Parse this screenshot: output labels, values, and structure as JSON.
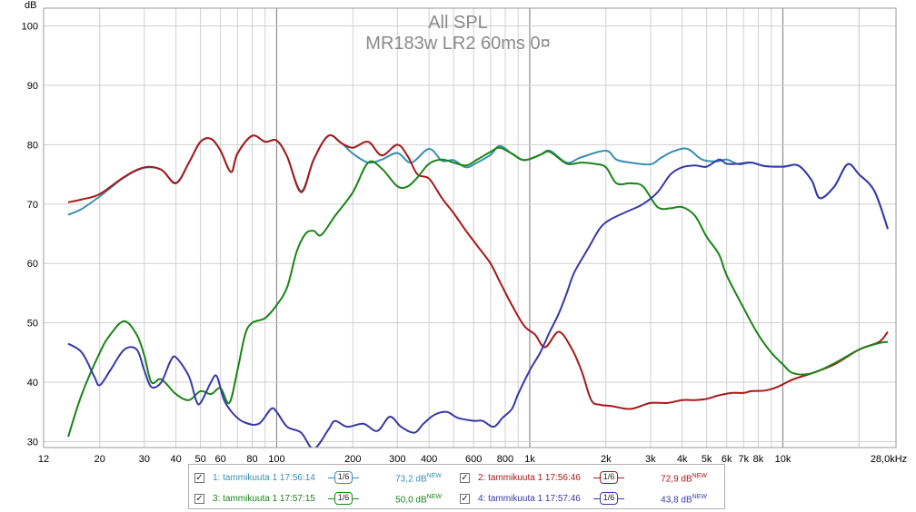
{
  "chart_data": {
    "type": "line",
    "title": "All SPL",
    "subtitle": "MR183w LR2 60ms 0¤",
    "ylabel": "dB",
    "xscale": "log",
    "xlim": [
      12,
      28000
    ],
    "ylim": [
      29,
      103
    ],
    "y_ticks": [
      "30",
      "40",
      "50",
      "60",
      "70",
      "80",
      "90",
      "100"
    ],
    "x_tick_labels": [
      {
        "f": 12,
        "label": "12"
      },
      {
        "f": 20,
        "label": "20"
      },
      {
        "f": 30,
        "label": "30"
      },
      {
        "f": 40,
        "label": "40"
      },
      {
        "f": 50,
        "label": "50"
      },
      {
        "f": 60,
        "label": "60"
      },
      {
        "f": 80,
        "label": "80"
      },
      {
        "f": 100,
        "label": "100"
      },
      {
        "f": 200,
        "label": "200"
      },
      {
        "f": 300,
        "label": "300"
      },
      {
        "f": 400,
        "label": "400"
      },
      {
        "f": 600,
        "label": "600"
      },
      {
        "f": 800,
        "label": "800"
      },
      {
        "f": 1000,
        "label": "1k"
      },
      {
        "f": 2000,
        "label": "2k"
      },
      {
        "f": 3000,
        "label": "3k"
      },
      {
        "f": 4000,
        "label": "4k"
      },
      {
        "f": 5000,
        "label": "5k"
      },
      {
        "f": 6000,
        "label": "6k"
      },
      {
        "f": 7000,
        "label": "7k"
      },
      {
        "f": 8000,
        "label": "8k"
      },
      {
        "f": 10000,
        "label": "10k"
      },
      {
        "f": 28000,
        "label": "28,0kHz"
      }
    ],
    "grid": true,
    "legend_position": "bottom",
    "series": [
      {
        "name": "1: tammikuuta 1 17:56:14",
        "color": "#3a8fb0",
        "points": [
          [
            15,
            68.2
          ],
          [
            17,
            69.2
          ],
          [
            20,
            71.3
          ],
          [
            25,
            74.5
          ],
          [
            30,
            76.1
          ],
          [
            35,
            75.8
          ],
          [
            40,
            73.6
          ],
          [
            45,
            77.0
          ],
          [
            50,
            80.5
          ],
          [
            55,
            81.0
          ],
          [
            60,
            79.0
          ],
          [
            66,
            75.4
          ],
          [
            70,
            78.5
          ],
          [
            80,
            81.5
          ],
          [
            90,
            80.5
          ],
          [
            100,
            80.7
          ],
          [
            110,
            78.0
          ],
          [
            125,
            72.2
          ],
          [
            140,
            77.5
          ],
          [
            160,
            81.5
          ],
          [
            180,
            80.3
          ],
          [
            200,
            78.5
          ],
          [
            230,
            77.0
          ],
          [
            260,
            77.5
          ],
          [
            300,
            78.6
          ],
          [
            340,
            77.0
          ],
          [
            400,
            79.3
          ],
          [
            450,
            77.3
          ],
          [
            500,
            77.4
          ],
          [
            560,
            76.2
          ],
          [
            620,
            77.0
          ],
          [
            700,
            78.3
          ],
          [
            760,
            79.8
          ],
          [
            850,
            78.5
          ],
          [
            950,
            77.4
          ],
          [
            1100,
            78.3
          ],
          [
            1200,
            79.0
          ],
          [
            1400,
            77.0
          ],
          [
            1600,
            77.9
          ],
          [
            2000,
            79.0
          ],
          [
            2200,
            77.5
          ],
          [
            2500,
            77.0
          ],
          [
            3000,
            76.7
          ],
          [
            3300,
            77.8
          ],
          [
            3700,
            78.9
          ],
          [
            4200,
            79.3
          ],
          [
            4800,
            77.5
          ],
          [
            5500,
            77.2
          ],
          [
            6000,
            77.5
          ],
          [
            6700,
            76.7
          ],
          [
            7500,
            77.0
          ],
          [
            8500,
            76.4
          ],
          [
            10000,
            76.3
          ],
          [
            11500,
            76.5
          ],
          [
            13000,
            74.0
          ],
          [
            14000,
            71.0
          ],
          [
            16000,
            73.0
          ],
          [
            18000,
            76.7
          ],
          [
            20000,
            75.0
          ],
          [
            23000,
            72.2
          ],
          [
            26000,
            65.8
          ]
        ]
      },
      {
        "name": "2: tammikuuta 1 17:56:46",
        "color": "#a81818",
        "points": [
          [
            15,
            70.3
          ],
          [
            17,
            70.8
          ],
          [
            20,
            71.7
          ],
          [
            25,
            74.6
          ],
          [
            30,
            76.2
          ],
          [
            35,
            75.8
          ],
          [
            40,
            73.5
          ],
          [
            45,
            77.0
          ],
          [
            50,
            80.5
          ],
          [
            55,
            81.0
          ],
          [
            60,
            79.0
          ],
          [
            66,
            75.4
          ],
          [
            70,
            78.5
          ],
          [
            80,
            81.5
          ],
          [
            90,
            80.5
          ],
          [
            100,
            80.7
          ],
          [
            110,
            78.0
          ],
          [
            125,
            72.0
          ],
          [
            140,
            77.5
          ],
          [
            160,
            81.5
          ],
          [
            180,
            80.3
          ],
          [
            200,
            79.5
          ],
          [
            230,
            80.5
          ],
          [
            260,
            78.2
          ],
          [
            300,
            80.0
          ],
          [
            330,
            78.0
          ],
          [
            360,
            75.0
          ],
          [
            400,
            74.3
          ],
          [
            450,
            71.0
          ],
          [
            500,
            68.5
          ],
          [
            560,
            65.5
          ],
          [
            620,
            63.0
          ],
          [
            700,
            60.0
          ],
          [
            760,
            57.0
          ],
          [
            850,
            53.0
          ],
          [
            950,
            49.5
          ],
          [
            1050,
            48.0
          ],
          [
            1150,
            45.9
          ],
          [
            1300,
            48.5
          ],
          [
            1450,
            46.0
          ],
          [
            1600,
            42.0
          ],
          [
            1750,
            37.0
          ],
          [
            1900,
            36.2
          ],
          [
            2100,
            36.0
          ],
          [
            2500,
            35.5
          ],
          [
            3000,
            36.5
          ],
          [
            3500,
            36.5
          ],
          [
            4000,
            37.0
          ],
          [
            4500,
            37.0
          ],
          [
            5000,
            37.2
          ],
          [
            5600,
            37.8
          ],
          [
            6300,
            38.2
          ],
          [
            7000,
            38.2
          ],
          [
            7500,
            38.5
          ],
          [
            8500,
            38.6
          ],
          [
            9500,
            39.2
          ],
          [
            11000,
            40.5
          ],
          [
            13000,
            41.5
          ],
          [
            16000,
            43.0
          ],
          [
            20000,
            45.5
          ],
          [
            24000,
            46.8
          ],
          [
            26000,
            48.5
          ]
        ]
      },
      {
        "name": "3: tammikuuta 1 17:57:15",
        "color": "#1a8418",
        "points": [
          [
            15,
            30.8
          ],
          [
            17,
            38.0
          ],
          [
            20,
            45.0
          ],
          [
            22,
            48.0
          ],
          [
            25,
            50.3
          ],
          [
            28,
            48.0
          ],
          [
            30,
            44.5
          ],
          [
            32,
            40.0
          ],
          [
            35,
            40.5
          ],
          [
            40,
            38.0
          ],
          [
            45,
            37.0
          ],
          [
            50,
            38.5
          ],
          [
            55,
            38.0
          ],
          [
            60,
            39.0
          ],
          [
            65,
            36.5
          ],
          [
            70,
            42.0
          ],
          [
            75,
            48.0
          ],
          [
            80,
            50.0
          ],
          [
            90,
            50.8
          ],
          [
            100,
            53.0
          ],
          [
            110,
            56.0
          ],
          [
            120,
            62.0
          ],
          [
            130,
            65.0
          ],
          [
            140,
            65.5
          ],
          [
            150,
            64.8
          ],
          [
            170,
            68.0
          ],
          [
            200,
            72.0
          ],
          [
            230,
            77.0
          ],
          [
            260,
            76.0
          ],
          [
            300,
            73.0
          ],
          [
            330,
            73.0
          ],
          [
            360,
            74.5
          ],
          [
            400,
            76.8
          ],
          [
            450,
            77.5
          ],
          [
            500,
            77.0
          ],
          [
            560,
            76.5
          ],
          [
            620,
            77.5
          ],
          [
            700,
            78.8
          ],
          [
            760,
            79.5
          ],
          [
            850,
            78.5
          ],
          [
            950,
            77.4
          ],
          [
            1100,
            78.3
          ],
          [
            1200,
            78.8
          ],
          [
            1400,
            76.8
          ],
          [
            1600,
            77.0
          ],
          [
            1800,
            76.8
          ],
          [
            2000,
            76.2
          ],
          [
            2200,
            73.5
          ],
          [
            2500,
            73.5
          ],
          [
            2800,
            73.0
          ],
          [
            3200,
            69.5
          ],
          [
            3600,
            69.3
          ],
          [
            4000,
            69.5
          ],
          [
            4500,
            68.0
          ],
          [
            5000,
            64.5
          ],
          [
            5600,
            61.5
          ],
          [
            6000,
            58.0
          ],
          [
            7000,
            52.5
          ],
          [
            8000,
            48.0
          ],
          [
            9000,
            45.0
          ],
          [
            10000,
            43.0
          ],
          [
            11000,
            41.5
          ],
          [
            13000,
            41.5
          ],
          [
            16000,
            43.2
          ],
          [
            20000,
            45.5
          ],
          [
            24000,
            46.6
          ],
          [
            26000,
            46.8
          ]
        ]
      },
      {
        "name": "4: tammikuuta 1 17:57:46",
        "color": "#3838a8",
        "points": [
          [
            15,
            46.5
          ],
          [
            17,
            45.0
          ],
          [
            19,
            41.0
          ],
          [
            20,
            39.5
          ],
          [
            22,
            42.0
          ],
          [
            25,
            45.5
          ],
          [
            28,
            45.5
          ],
          [
            30,
            42.0
          ],
          [
            32,
            39.2
          ],
          [
            35,
            40.0
          ],
          [
            38,
            43.5
          ],
          [
            40,
            44.2
          ],
          [
            45,
            41.0
          ],
          [
            48,
            37.0
          ],
          [
            50,
            36.5
          ],
          [
            55,
            40.0
          ],
          [
            58,
            41.0
          ],
          [
            62,
            37.0
          ],
          [
            68,
            34.5
          ],
          [
            75,
            33.2
          ],
          [
            85,
            33.0
          ],
          [
            95,
            35.5
          ],
          [
            100,
            35.0
          ],
          [
            110,
            32.5
          ],
          [
            125,
            31.5
          ],
          [
            140,
            28.8
          ],
          [
            160,
            32.0
          ],
          [
            170,
            33.5
          ],
          [
            190,
            32.5
          ],
          [
            220,
            33.0
          ],
          [
            250,
            31.8
          ],
          [
            280,
            34.2
          ],
          [
            310,
            32.5
          ],
          [
            350,
            31.5
          ],
          [
            380,
            33.0
          ],
          [
            420,
            34.5
          ],
          [
            470,
            35.0
          ],
          [
            520,
            34.0
          ],
          [
            600,
            33.5
          ],
          [
            650,
            33.5
          ],
          [
            720,
            32.5
          ],
          [
            780,
            34.0
          ],
          [
            850,
            35.5
          ],
          [
            900,
            38.0
          ],
          [
            1000,
            42.0
          ],
          [
            1100,
            45.0
          ],
          [
            1200,
            48.5
          ],
          [
            1300,
            51.5
          ],
          [
            1400,
            55.0
          ],
          [
            1500,
            58.5
          ],
          [
            1700,
            62.5
          ],
          [
            1900,
            66.0
          ],
          [
            2100,
            67.5
          ],
          [
            2500,
            69.0
          ],
          [
            2800,
            70.0
          ],
          [
            3200,
            72.0
          ],
          [
            3600,
            75.0
          ],
          [
            4000,
            76.2
          ],
          [
            4500,
            76.5
          ],
          [
            5000,
            76.3
          ],
          [
            5600,
            77.5
          ],
          [
            6000,
            76.8
          ],
          [
            6700,
            76.8
          ],
          [
            7500,
            77.0
          ],
          [
            8500,
            76.4
          ],
          [
            10000,
            76.3
          ],
          [
            11500,
            76.5
          ],
          [
            13000,
            74.0
          ],
          [
            14000,
            71.0
          ],
          [
            16000,
            73.0
          ],
          [
            18000,
            76.7
          ],
          [
            20000,
            75.0
          ],
          [
            23000,
            72.2
          ],
          [
            26000,
            65.8
          ]
        ]
      }
    ]
  },
  "legend": [
    {
      "label": "1: tammikuuta 1 17:56:14",
      "smoothing": "1/6",
      "value": "73,2 dB",
      "badge": "NEW",
      "color": "#3a8fb0",
      "checked": "✓"
    },
    {
      "label": "2: tammikuuta 1 17:56:46",
      "smoothing": "1/6",
      "value": "72,9 dB",
      "badge": "NEW",
      "color": "#a81818",
      "checked": "✓"
    },
    {
      "label": "3: tammikuuta 1 17:57:15",
      "smoothing": "1/6",
      "value": "50,0 dB",
      "badge": "NEW",
      "color": "#1a8418",
      "checked": "✓"
    },
    {
      "label": "4: tammikuuta 1 17:57:46",
      "smoothing": "1/6",
      "value": "43,8 dB",
      "badge": "NEW",
      "color": "#3838a8",
      "checked": "✓"
    }
  ]
}
